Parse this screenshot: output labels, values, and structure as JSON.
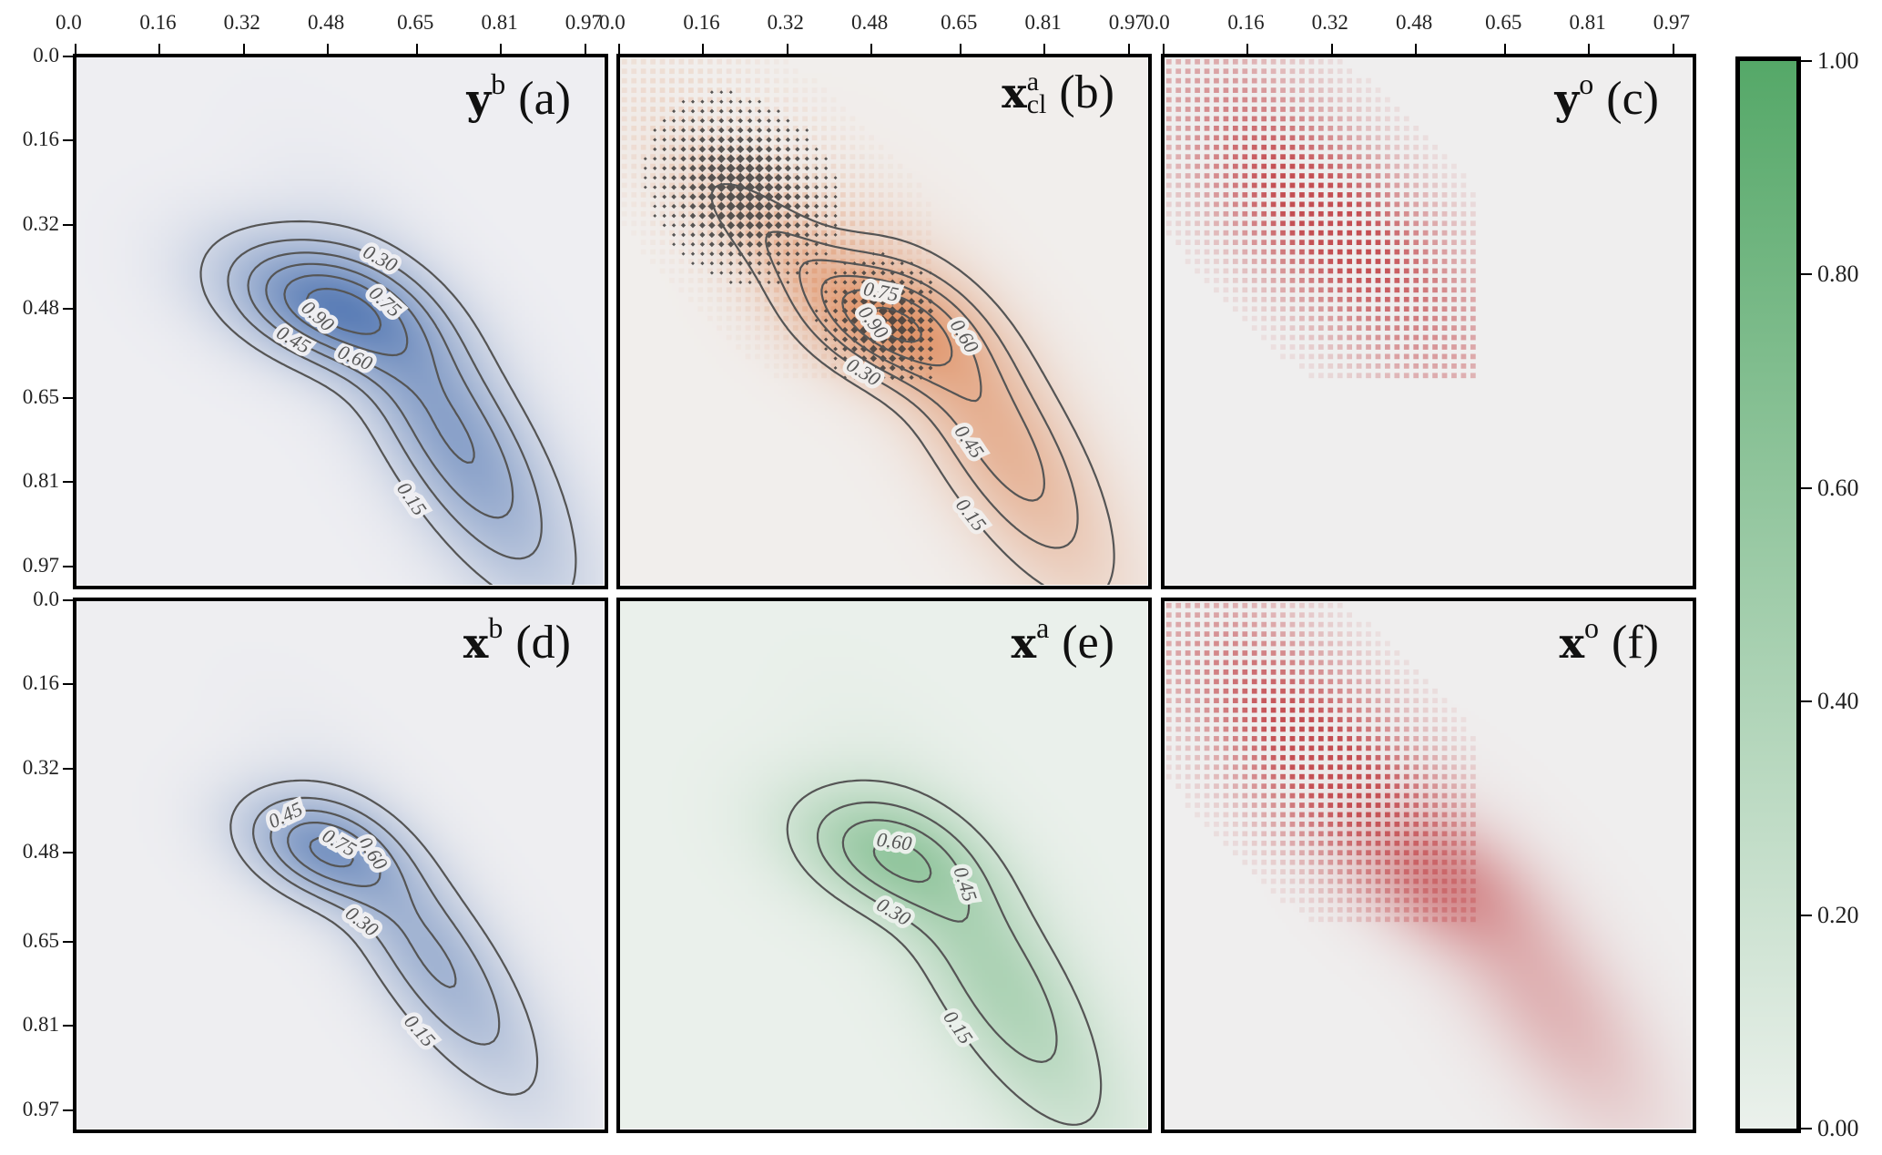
{
  "chart_data": {
    "type": "heatmap",
    "x_ticks": [
      "0.0",
      "0.16",
      "0.32",
      "0.48",
      "0.65",
      "0.81",
      "0.97"
    ],
    "y_ticks": [
      "0.0",
      "0.16",
      "0.32",
      "0.48",
      "0.65",
      "0.81",
      "0.97"
    ],
    "xlim": [
      0,
      1
    ],
    "ylim": [
      1,
      0
    ],
    "colorbar": {
      "ticks": [
        "0.00",
        "0.20",
        "0.40",
        "0.60",
        "0.80",
        "1.00"
      ],
      "range": [
        0,
        1
      ],
      "color_low": "#ebf1ec",
      "color_high": "#55a868"
    },
    "panels": [
      {
        "id": "a",
        "symbol": "y",
        "sup": "b",
        "sub": "",
        "tag": "(a)",
        "color": "#4c72b0",
        "background": "#eeeef2",
        "peak": 1.0,
        "contour_levels": [
          "0.15",
          "0.30",
          "0.45",
          "0.60",
          "0.75",
          "0.90"
        ],
        "components": [
          {
            "center": [
              0.47,
              0.47
            ],
            "sd": [
              0.13,
              0.07
            ],
            "angle": 20,
            "weight": 1
          },
          {
            "center": [
              0.72,
              0.72
            ],
            "sd": [
              0.22,
              0.08
            ],
            "angle": 58,
            "weight": 0.72
          }
        ],
        "observations": "none"
      },
      {
        "id": "b",
        "symbol": "x",
        "sup": "a",
        "sub": "cl",
        "tag": "(b)",
        "color": "#dd8452",
        "background": "#f1eeec",
        "peak": 0.95,
        "contour_levels": [
          "0.15",
          "0.30",
          "0.45",
          "0.60",
          "0.75",
          "0.90"
        ],
        "components": [
          {
            "center": [
              0.5,
              0.5
            ],
            "sd": [
              0.12,
              0.07
            ],
            "angle": 25,
            "weight": 1
          },
          {
            "center": [
              0.72,
              0.72
            ],
            "sd": [
              0.22,
              0.08
            ],
            "angle": 58,
            "weight": 0.75
          },
          {
            "center": [
              0.3,
              0.35
            ],
            "sd": [
              0.15,
              0.05
            ],
            "angle": 40,
            "weight": 0.35
          }
        ],
        "observations": "markers"
      },
      {
        "id": "c",
        "symbol": "y",
        "sup": "o",
        "sub": "",
        "tag": "(c)",
        "color": "#c44e52",
        "background": "#efeeee",
        "peak": 0,
        "contour_levels": [],
        "components": [],
        "observations": "pixels"
      },
      {
        "id": "d",
        "symbol": "x",
        "sup": "b",
        "sub": "",
        "tag": "(d)",
        "color": "#4c72b0",
        "background": "#eeeef1",
        "peak": 0.8,
        "contour_levels": [
          "0.15",
          "0.30",
          "0.45",
          "0.60",
          "0.75"
        ],
        "components": [
          {
            "center": [
              0.46,
              0.47
            ],
            "sd": [
              0.1,
              0.06
            ],
            "angle": 22,
            "weight": 1
          },
          {
            "center": [
              0.68,
              0.68
            ],
            "sd": [
              0.2,
              0.07
            ],
            "angle": 55,
            "weight": 0.7
          }
        ],
        "observations": "none"
      },
      {
        "id": "e",
        "symbol": "x",
        "sup": "a",
        "sub": "",
        "tag": "(e)",
        "color": "#55a868",
        "background": "#eaf0eb",
        "peak": 0.65,
        "contour_levels": [
          "0.15",
          "0.30",
          "0.45",
          "0.60"
        ],
        "components": [
          {
            "center": [
              0.5,
              0.48
            ],
            "sd": [
              0.12,
              0.07
            ],
            "angle": 22,
            "weight": 1
          },
          {
            "center": [
              0.72,
              0.72
            ],
            "sd": [
              0.22,
              0.08
            ],
            "angle": 58,
            "weight": 0.8
          }
        ],
        "observations": "none"
      },
      {
        "id": "f",
        "symbol": "x",
        "sup": "o",
        "sub": "",
        "tag": "(f)",
        "color": "#c44e52",
        "background": "#efeeee",
        "peak": 0.7,
        "contour_levels": [],
        "components": [
          {
            "center": [
              0.52,
              0.53
            ],
            "sd": [
              0.11,
              0.07
            ],
            "angle": 30,
            "weight": 1
          },
          {
            "center": [
              0.72,
              0.74
            ],
            "sd": [
              0.2,
              0.08
            ],
            "angle": 55,
            "weight": 0.6
          }
        ],
        "observations": "pixels"
      }
    ]
  }
}
